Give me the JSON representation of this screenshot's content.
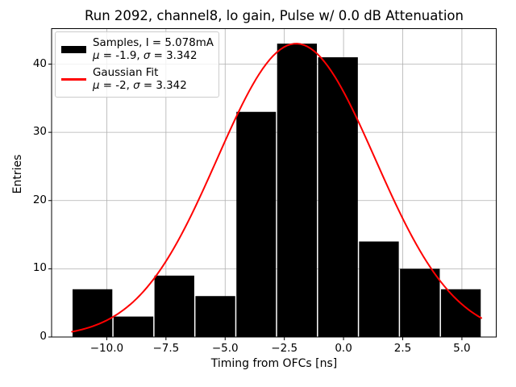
{
  "chart_data": {
    "type": "bar",
    "subtype": "histogram-with-gaussian-fit",
    "title": "Run 2092, channel8, lo gain, Pulse w/ 0.0 dB Attenuation",
    "xlabel": "Timing from OFCs [ns]",
    "ylabel": "Entries",
    "grid": true,
    "xlim": [
      -12.33,
      6.45
    ],
    "ylim": [
      0,
      45.2
    ],
    "xticks": {
      "values": [
        -10.0,
        -7.5,
        -5.0,
        -2.5,
        0.0,
        2.5,
        5.0
      ],
      "labels": [
        "−10.0",
        "−7.5",
        "−5.0",
        "−2.5",
        "0.0",
        "2.5",
        "5.0"
      ]
    },
    "yticks": {
      "values": [
        0,
        10,
        20,
        30,
        40
      ],
      "labels": [
        "0",
        "10",
        "20",
        "30",
        "40"
      ]
    },
    "bins": {
      "edges": [
        -11.47,
        -9.74,
        -8.01,
        -6.28,
        -4.55,
        -2.83,
        -1.1,
        0.63,
        2.36,
        4.09,
        5.82
      ],
      "counts": [
        7,
        3,
        9,
        6,
        33,
        43,
        41,
        14,
        10,
        7
      ]
    },
    "fit": {
      "type": "gaussian",
      "mu": -2,
      "sigma": 3.342,
      "amplitude": 43,
      "x_range": [
        -11.47,
        5.82
      ]
    },
    "colors": {
      "bar": "#000000",
      "bar_gap": "#ffffff",
      "fit_line": "#ff0000",
      "grid": "#b0b0b0",
      "spine": "#000000",
      "legend_border": "#cccccc"
    },
    "legend": {
      "position": "upper-left",
      "entries": [
        {
          "swatch": "black-bar",
          "line1": "Samples, I = 5.078mA",
          "mu_sym": "μ",
          "mu_val": " = -1.9, ",
          "sigma_sym": "σ",
          "sigma_val": " = 3.342"
        },
        {
          "swatch": "red-line",
          "line1": "Gaussian Fit",
          "mu_sym": "μ",
          "mu_val": " = -2, ",
          "sigma_sym": "σ",
          "sigma_val": " = 3.342"
        }
      ]
    }
  }
}
